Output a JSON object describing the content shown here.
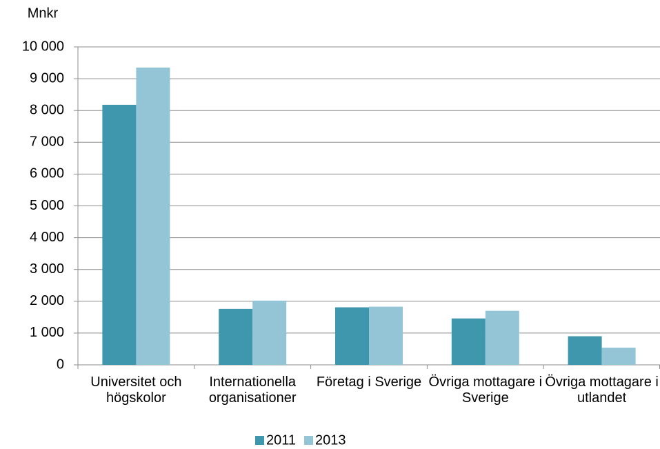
{
  "chart_data": {
    "type": "bar",
    "y_label": "Mnkr",
    "categories": [
      "Universitet och högskolor",
      "Internationella organisationer",
      "Företag i Sverige",
      "Övriga mottagare i Sverige",
      "Övriga mottagare i utlandet"
    ],
    "series": [
      {
        "name": "2011",
        "color": "#3f97ad",
        "values": [
          8180,
          1760,
          1810,
          1460,
          900
        ]
      },
      {
        "name": "2013",
        "color": "#93c5d6",
        "values": [
          9350,
          2020,
          1830,
          1700,
          540
        ]
      }
    ],
    "ylim": [
      0,
      10000
    ],
    "yticks": [
      0,
      {
        "value": 1000,
        "label": "1 000"
      },
      {
        "value": 2000,
        "label": "2 000"
      },
      {
        "value": 3000,
        "label": "3 000"
      },
      {
        "value": 4000,
        "label": "4 000"
      },
      {
        "value": 5000,
        "label": "5 000"
      },
      {
        "value": 6000,
        "label": "6 000"
      },
      {
        "value": 7000,
        "label": "7 000"
      },
      {
        "value": 8000,
        "label": "8 000"
      },
      {
        "value": 9000,
        "label": "9 000"
      },
      {
        "value": 10000,
        "label": "10 000"
      }
    ],
    "grid": true,
    "legend": "bottom"
  }
}
